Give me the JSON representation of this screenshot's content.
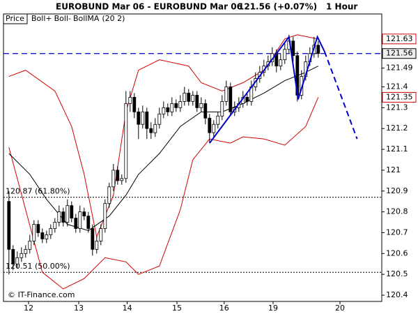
{
  "chart_data": {
    "type": "candlestick",
    "title": "EUROBUND Mar 06 - EUROBUND Mar 06",
    "price_info": "121.56 (+0.07%)",
    "interval": "1 Hour",
    "legend": {
      "price": "Price",
      "indicator_params": "(20 2)"
    },
    "copyright": "© IT-Finance.com",
    "xlim": [
      -1.3,
      89.2
    ],
    "ylim": [
      120.37,
      121.75
    ],
    "xticks": [
      {
        "value": 4.7,
        "label": "12"
      },
      {
        "value": 16.7,
        "label": "13"
      },
      {
        "value": 28.3,
        "label": "14"
      },
      {
        "value": 40.2,
        "label": "15"
      },
      {
        "value": 51.5,
        "label": "16"
      },
      {
        "value": 63.2,
        "label": "19"
      },
      {
        "value": 79.2,
        "label": "20"
      }
    ],
    "yticks": [
      120.4,
      120.5,
      120.6,
      120.7,
      120.8,
      120.9,
      121,
      121.1,
      121.2,
      121.3,
      121.4,
      121.49
    ],
    "up_color": "#ffffff",
    "down_color": "#000000",
    "candles": [
      [
        120.85,
        120.9,
        120.5,
        120.62
      ],
      [
        120.62,
        120.64,
        120.52,
        120.55
      ],
      [
        120.55,
        120.61,
        120.53,
        120.58
      ],
      [
        120.58,
        120.63,
        120.56,
        120.6
      ],
      [
        120.6,
        120.64,
        120.58,
        120.62
      ],
      [
        120.62,
        120.69,
        120.6,
        120.66
      ],
      [
        120.66,
        120.76,
        120.64,
        120.74
      ],
      [
        120.74,
        120.76,
        120.68,
        120.7
      ],
      [
        120.7,
        120.72,
        120.65,
        120.67
      ],
      [
        120.67,
        120.71,
        120.65,
        120.69
      ],
      [
        120.69,
        120.74,
        120.67,
        120.72
      ],
      [
        120.72,
        120.77,
        120.7,
        120.75
      ],
      [
        120.75,
        120.83,
        120.73,
        120.8
      ],
      [
        120.8,
        120.82,
        120.73,
        120.75
      ],
      [
        120.75,
        120.86,
        120.73,
        120.83
      ],
      [
        120.83,
        120.85,
        120.75,
        120.77
      ],
      [
        120.77,
        120.79,
        120.7,
        120.72
      ],
      [
        120.72,
        120.83,
        120.7,
        120.8
      ],
      [
        120.8,
        120.82,
        120.76,
        120.78
      ],
      [
        120.78,
        120.8,
        120.7,
        120.72
      ],
      [
        120.72,
        120.74,
        120.59,
        120.62
      ],
      [
        120.62,
        120.68,
        120.6,
        120.66
      ],
      [
        120.66,
        120.74,
        120.64,
        120.72
      ],
      [
        120.72,
        120.86,
        120.7,
        120.84
      ],
      [
        120.84,
        120.94,
        120.82,
        120.92
      ],
      [
        120.92,
        121.03,
        120.9,
        121.0
      ],
      [
        121.0,
        121.02,
        120.93,
        120.95
      ],
      [
        120.95,
        120.98,
        120.93,
        120.96
      ],
      [
        120.96,
        121.38,
        120.94,
        121.32
      ],
      [
        121.32,
        121.38,
        121.28,
        121.35
      ],
      [
        121.35,
        121.37,
        121.25,
        121.28
      ],
      [
        121.28,
        121.3,
        121.15,
        121.22
      ],
      [
        121.22,
        121.31,
        121.2,
        121.28
      ],
      [
        121.28,
        121.3,
        121.15,
        121.2
      ],
      [
        121.2,
        121.23,
        121.15,
        121.18
      ],
      [
        121.18,
        121.25,
        121.16,
        121.22
      ],
      [
        121.22,
        121.3,
        121.2,
        121.27
      ],
      [
        121.27,
        121.33,
        121.25,
        121.3
      ],
      [
        121.3,
        121.32,
        121.26,
        121.28
      ],
      [
        121.28,
        121.35,
        121.26,
        121.32
      ],
      [
        121.32,
        121.34,
        121.28,
        121.3
      ],
      [
        121.3,
        121.36,
        121.28,
        121.33
      ],
      [
        121.33,
        121.4,
        121.31,
        121.37
      ],
      [
        121.37,
        121.39,
        121.31,
        121.33
      ],
      [
        121.33,
        121.38,
        121.31,
        121.36
      ],
      [
        121.36,
        121.38,
        121.28,
        121.3
      ],
      [
        121.3,
        121.35,
        121.28,
        121.32
      ],
      [
        121.32,
        121.34,
        121.22,
        121.25
      ],
      [
        121.25,
        121.27,
        121.13,
        121.18
      ],
      [
        121.18,
        121.24,
        121.16,
        121.22
      ],
      [
        121.22,
        121.28,
        121.2,
        121.26
      ],
      [
        121.26,
        121.36,
        121.24,
        121.33
      ],
      [
        121.33,
        121.43,
        121.31,
        121.4
      ],
      [
        121.4,
        121.42,
        121.26,
        121.28
      ],
      [
        121.28,
        121.33,
        121.26,
        121.3
      ],
      [
        121.3,
        121.35,
        121.28,
        121.32
      ],
      [
        121.32,
        121.38,
        121.3,
        121.35
      ],
      [
        121.35,
        121.37,
        121.31,
        121.33
      ],
      [
        121.33,
        121.43,
        121.31,
        121.4
      ],
      [
        121.4,
        121.47,
        121.38,
        121.44
      ],
      [
        121.44,
        121.5,
        121.42,
        121.47
      ],
      [
        121.47,
        121.53,
        121.45,
        121.5
      ],
      [
        121.5,
        121.55,
        121.48,
        121.52
      ],
      [
        121.52,
        121.59,
        121.5,
        121.56
      ],
      [
        121.56,
        121.58,
        121.47,
        121.5
      ],
      [
        121.5,
        121.56,
        121.48,
        121.53
      ],
      [
        121.53,
        121.61,
        121.51,
        121.58
      ],
      [
        121.58,
        121.65,
        121.56,
        121.62
      ],
      [
        121.62,
        121.64,
        121.52,
        121.55
      ],
      [
        121.55,
        121.57,
        121.33,
        121.36
      ],
      [
        121.36,
        121.48,
        121.34,
        121.45
      ],
      [
        121.45,
        121.55,
        121.43,
        121.52
      ],
      [
        121.52,
        121.59,
        121.5,
        121.56
      ],
      [
        121.56,
        121.64,
        121.54,
        121.6
      ],
      [
        121.6,
        121.62,
        121.54,
        121.56
      ]
    ],
    "series": [
      {
        "name": "Boll+",
        "color": "#d00000",
        "x": [
          0,
          4,
          11,
          15,
          18,
          21,
          25,
          28,
          31,
          36,
          43,
          46,
          51,
          56,
          61,
          66,
          69,
          74
        ],
        "values": [
          121.45,
          121.48,
          121.38,
          121.21,
          120.98,
          120.68,
          120.88,
          121.28,
          121.48,
          121.53,
          121.5,
          121.42,
          121.38,
          121.42,
          121.48,
          121.63,
          121.65,
          121.63
        ]
      },
      {
        "name": "Boll-",
        "color": "#d00000",
        "x": [
          0,
          4,
          8,
          13,
          18,
          23,
          28,
          31,
          36,
          41,
          44,
          48,
          53,
          56,
          61,
          66,
          71,
          74
        ],
        "values": [
          121.11,
          120.81,
          120.51,
          120.43,
          120.48,
          120.58,
          120.56,
          120.5,
          120.54,
          120.81,
          121.05,
          121.15,
          121.13,
          121.16,
          121.15,
          121.12,
          121.21,
          121.35
        ]
      },
      {
        "name": "BollMA",
        "color": "#000000",
        "x": [
          0,
          5,
          9,
          14,
          19,
          24,
          28,
          31,
          36,
          41,
          46,
          51,
          56,
          61,
          66,
          71,
          74
        ],
        "values": [
          121.08,
          120.98,
          120.86,
          120.74,
          120.71,
          120.78,
          120.88,
          120.98,
          121.08,
          121.21,
          121.28,
          121.28,
          121.32,
          121.37,
          121.43,
          121.47,
          121.5
        ]
      }
    ],
    "trend_lines": [
      {
        "color": "#0000cc",
        "style": "solid",
        "x": [
          48,
          67,
          69.2,
          73.8,
          75.5
        ],
        "values": [
          121.13,
          121.64,
          121.34,
          121.64,
          121.57
        ]
      },
      {
        "color": "#0000cc",
        "style": "dashed",
        "x": [
          75.5,
          83.3
        ],
        "values": [
          121.57,
          121.15
        ]
      }
    ],
    "levels": [
      {
        "value": 121.56,
        "style": "dashed",
        "color": "#0000cc"
      },
      {
        "value": 120.87,
        "label": "120.87 (61.80%)",
        "style": "dotted",
        "color": "#000000"
      },
      {
        "value": 120.51,
        "label": "120.51 (50.00%)",
        "style": "dotted",
        "color": "#000000"
      }
    ],
    "price_markers": [
      {
        "value": 121.63,
        "color": "#d00000",
        "fill": "#ffffff"
      },
      {
        "value": 121.56,
        "color": "#000000",
        "fill": "#eeeeee"
      },
      {
        "value": 121.35,
        "color": "#d00000",
        "fill": "#ffffff"
      }
    ]
  }
}
